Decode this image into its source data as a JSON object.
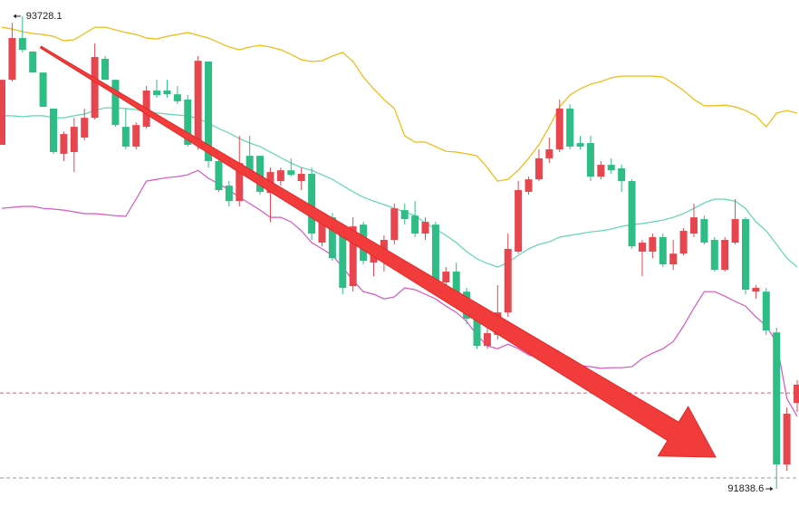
{
  "chart_data": {
    "type": "candlestick",
    "ylim": [
      91770,
      93793
    ],
    "up_color": "#e8464f",
    "down_color": "#2ebd85",
    "open": [
      93214,
      93474,
      93641,
      93587,
      93503,
      93359,
      93178,
      93185,
      93243,
      93322,
      93558,
      93474,
      93286,
      93207,
      93286,
      93431,
      93431,
      93416,
      93395,
      93214,
      93547,
      93149,
      93051,
      92989,
      93170,
      93170,
      93022,
      93069,
      93112,
      93069,
      93098,
      92823,
      92924,
      92852,
      92649,
      92895,
      92743,
      92761,
      92834,
      92953,
      92931,
      92859,
      92895,
      92664,
      92707,
      92627,
      92526,
      92410,
      92454,
      92544,
      92787,
      93026,
      93076,
      93160,
      93196,
      93359,
      93221,
      93221,
      93087,
      93134,
      93120,
      93069,
      92787,
      92787,
      92845,
      92736,
      92779,
      92859,
      92917,
      92834,
      92714,
      92823,
      92917,
      92627,
      92627,
      92464,
      91936,
      92182
    ],
    "high": [
      93474,
      93702,
      93728.1,
      93587,
      93503,
      93359,
      93268,
      93322,
      93359,
      93619,
      93569,
      93474,
      93359,
      93304,
      93449,
      93474,
      93474,
      93449,
      93413,
      93569,
      93547,
      93160,
      93069,
      93250,
      93250,
      93170,
      93123,
      93123,
      93160,
      93123,
      93123,
      92942,
      92942,
      92870,
      92924,
      92906,
      92816,
      92852,
      92979,
      92979,
      92989,
      92924,
      92906,
      92725,
      92743,
      92642,
      92544,
      92544,
      92653,
      92859,
      93069,
      93087,
      93196,
      93243,
      93395,
      93377,
      93250,
      93250,
      93149,
      93160,
      93134,
      93076,
      92834,
      92859,
      92859,
      92834,
      92881,
      92979,
      92931,
      92845,
      92845,
      92997,
      92924,
      92653,
      92642,
      92483,
      92164,
      92273
    ],
    "low": [
      93214,
      93467,
      93583,
      93503,
      93366,
      93178,
      93149,
      93105,
      93232,
      93315,
      93474,
      93286,
      93196,
      93196,
      93279,
      93402,
      93402,
      93377,
      93207,
      93196,
      93123,
      93026,
      92968,
      92968,
      93087,
      93015,
      92906,
      93051,
      93087,
      93033,
      92834,
      92808,
      92750,
      92617,
      92627,
      92736,
      92689,
      92707,
      92816,
      92895,
      92845,
      92834,
      92664,
      92635,
      92598,
      92497,
      92399,
      92399,
      92436,
      92526,
      92779,
      93015,
      93069,
      93141,
      93185,
      93196,
      93196,
      93069,
      93076,
      93098,
      93026,
      92798,
      92689,
      92761,
      92725,
      92714,
      92772,
      92845,
      92816,
      92707,
      92707,
      92816,
      92617,
      92598,
      92454,
      91838.6,
      91911,
      92146
    ],
    "close": [
      93474,
      93641,
      93594,
      93503,
      93366,
      93185,
      93257,
      93286,
      93322,
      93565,
      93474,
      93293,
      93207,
      93293,
      93431,
      93413,
      93416,
      93388,
      93214,
      93550,
      93149,
      93033,
      92989,
      93141,
      93105,
      93026,
      93105,
      93112,
      93094,
      93098,
      92859,
      92924,
      92761,
      92642,
      92888,
      92750,
      92779,
      92834,
      92960,
      92917,
      92859,
      92906,
      92671,
      92707,
      92617,
      92519,
      92410,
      92461,
      92544,
      92798,
      93033,
      93076,
      93160,
      93196,
      93359,
      93207,
      93207,
      93087,
      93134,
      93112,
      93069,
      92808,
      92823,
      92845,
      92736,
      92779,
      92870,
      92924,
      92823,
      92714,
      92834,
      92917,
      92635,
      92642,
      92472,
      91936,
      92139,
      92255
    ],
    "series": [
      {
        "color": "#f0b90b",
        "values": [
          93684,
          93677,
          93666,
          93659,
          93655,
          93648,
          93630,
          93634,
          93659,
          93684,
          93684,
          93674,
          93663,
          93655,
          93641,
          93637,
          93648,
          93655,
          93663,
          93652,
          93641,
          93623,
          93605,
          93594,
          93605,
          93612,
          93605,
          93594,
          93576,
          93554,
          93547,
          93550,
          93569,
          93583,
          93547,
          93485,
          93438,
          93395,
          93359,
          93250,
          93225,
          93225,
          93207,
          93188,
          93185,
          93178,
          93170,
          93123,
          93069,
          93076,
          93112,
          93160,
          93214,
          93286,
          93366,
          93413,
          93438,
          93456,
          93467,
          93482,
          93489,
          93489,
          93489,
          93489,
          93485,
          93460,
          93431,
          93395,
          93370,
          93370,
          93373,
          93366,
          93351,
          93330,
          93286,
          93341,
          93351,
          93341
        ]
      },
      {
        "color": "#5fd6b4",
        "values": [
          93330,
          93330,
          93326,
          93330,
          93330,
          93322,
          93322,
          93330,
          93337,
          93351,
          93362,
          93362,
          93359,
          93355,
          93344,
          93341,
          93337,
          93333,
          93330,
          93319,
          93301,
          93279,
          93261,
          93239,
          93221,
          93207,
          93185,
          93163,
          93141,
          93123,
          93112,
          93094,
          93076,
          93051,
          93026,
          93004,
          92989,
          92975,
          92960,
          92946,
          92931,
          92902,
          92877,
          92852,
          92823,
          92787,
          92758,
          92740,
          92725,
          92743,
          92772,
          92798,
          92816,
          92826,
          92845,
          92852,
          92859,
          92866,
          92870,
          92877,
          92888,
          92895,
          92899,
          92906,
          92913,
          92924,
          92939,
          92960,
          92982,
          92997,
          92997,
          92989,
          92960,
          92906,
          92870,
          92816,
          92761,
          92725
        ]
      },
      {
        "color": "#d656c4",
        "values": [
          92960,
          92964,
          92968,
          92968,
          92960,
          92957,
          92953,
          92946,
          92939,
          92939,
          92935,
          92931,
          92928,
          92997,
          93069,
          93076,
          93083,
          93087,
          93094,
          93112,
          93080,
          93058,
          93033,
          93004,
          92979,
          92953,
          92924,
          92924,
          92906,
          92870,
          92823,
          92798,
          92772,
          92725,
          92671,
          92627,
          92617,
          92598,
          92606,
          92642,
          92635,
          92617,
          92598,
          92569,
          92544,
          92508,
          92454,
          92410,
          92399,
          92417,
          92399,
          92374,
          92363,
          92352,
          92345,
          92334,
          92331,
          92327,
          92320,
          92323,
          92323,
          92327,
          92360,
          92381,
          92399,
          92428,
          92490,
          92562,
          92627,
          92627,
          92609,
          92588,
          92569,
          92526,
          92490,
          92425,
          92200,
          92128
        ]
      }
    ],
    "hlines": [
      {
        "value": 92222,
        "color": "#c86878"
      },
      {
        "value": 91882,
        "color": "#9a9a9a"
      }
    ],
    "annotations": [
      {
        "value": 93728.1,
        "label": "93728.1",
        "side": "right"
      },
      {
        "value": 91838.6,
        "label": "91838.6",
        "side": "left"
      }
    ]
  }
}
